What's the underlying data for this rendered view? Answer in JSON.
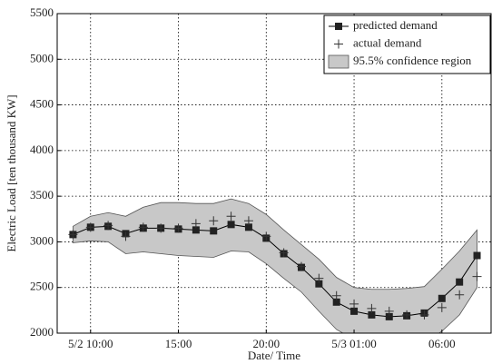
{
  "chart_data": {
    "type": "line",
    "xlabel": "Date/ Time",
    "ylabel": "Electric Load [ten thousand KW]",
    "x": [
      9,
      10,
      11,
      12,
      13,
      14,
      15,
      16,
      17,
      18,
      19,
      20,
      21,
      22,
      23,
      24,
      25,
      26,
      27,
      28,
      29,
      30,
      31,
      32
    ],
    "xlim": [
      8.1,
      32.8
    ],
    "xticks": [
      {
        "value": 10,
        "label": "5/2 10:00"
      },
      {
        "value": 15,
        "label": "15:00"
      },
      {
        "value": 20,
        "label": "20:00"
      },
      {
        "value": 25,
        "label": "5/3 01:00"
      },
      {
        "value": 30,
        "label": "06:00"
      }
    ],
    "ylim": [
      2000,
      5500
    ],
    "yticks": [
      2000,
      2500,
      3000,
      3500,
      4000,
      4500,
      5000,
      5500
    ],
    "grid": true,
    "legend": "upper right",
    "series": [
      {
        "name": "predicted demand",
        "color": "#000000",
        "marker": "square",
        "values": [
          3080,
          3160,
          3170,
          3090,
          3150,
          3150,
          3140,
          3130,
          3120,
          3190,
          3160,
          3040,
          2870,
          2720,
          2540,
          2340,
          2240,
          2200,
          2180,
          2190,
          2220,
          2380,
          2560,
          2850
        ]
      },
      {
        "name": "actual demand",
        "color": "#000000",
        "marker": "plus",
        "values": [
          3080,
          3160,
          3180,
          3060,
          3160,
          3150,
          3150,
          3200,
          3230,
          3280,
          3230,
          3060,
          2880,
          2730,
          2600,
          2410,
          2320,
          2270,
          2240,
          2200,
          2200,
          2280,
          2420,
          2620
        ]
      },
      {
        "name": "95.5% confidence region",
        "color": "#c8c8c8",
        "marker": "band",
        "upper": [
          3170,
          3280,
          3320,
          3280,
          3380,
          3430,
          3430,
          3420,
          3420,
          3470,
          3420,
          3300,
          3130,
          2970,
          2810,
          2610,
          2500,
          2480,
          2480,
          2490,
          2510,
          2700,
          2900,
          3130
        ],
        "lower": [
          2990,
          3010,
          3000,
          2870,
          2890,
          2870,
          2850,
          2840,
          2830,
          2900,
          2890,
          2760,
          2600,
          2450,
          2240,
          2040,
          1930,
          1890,
          1880,
          1880,
          1900,
          2020,
          2200,
          2500
        ]
      }
    ]
  }
}
